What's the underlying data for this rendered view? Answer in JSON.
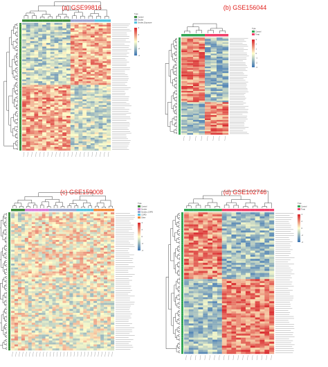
{
  "figure": {
    "background": "#ffffff",
    "title_color": "#e0201c"
  },
  "chart_data": [
    {
      "type": "heatmap",
      "title": "(a) GSE99816",
      "n_rows": 70,
      "n_cols": 22,
      "row_clusters": [
        34,
        36
      ],
      "column_groups": [
        12,
        6,
        4
      ],
      "group_colors": [
        "#3c8c3c",
        "#9aa6cf",
        "#57c3df"
      ],
      "colorbar_ticks": [
        "4",
        "2",
        "0",
        "-2",
        "-4"
      ],
      "legend_type_label": "Type",
      "legend_type_entries": [
        "Control",
        "Smoke",
        "Smoke_Exposure"
      ],
      "colorscale": [
        "#3a73b3",
        "#ffffcc",
        "#d8242a"
      ],
      "seed": 11
    },
    {
      "type": "heatmap",
      "title": "(b) GSE156044",
      "n_rows": 60,
      "n_cols": 8,
      "row_clusters": [
        40,
        20
      ],
      "column_groups": [
        4,
        4
      ],
      "group_colors": [
        "#33a653",
        "#f0406a"
      ],
      "colorbar_ticks": [
        "3",
        "2",
        "1",
        "0",
        "-1",
        "-2",
        "-3"
      ],
      "legend_type_label": "Type",
      "legend_type_entries": [
        "Control",
        "Treat"
      ],
      "colorscale": [
        "#3a73b3",
        "#ffffcc",
        "#d8242a"
      ],
      "seed": 23
    },
    {
      "type": "heatmap",
      "title": "(c) GSE159008",
      "n_rows": 70,
      "n_cols": 30,
      "row_clusters": [
        35,
        35
      ],
      "column_groups": [
        4,
        7,
        8,
        5,
        6
      ],
      "group_colors": [
        "#3c8c3c",
        "#d87fd8",
        "#9aa6cf",
        "#57c3df",
        "#f08a3c"
      ],
      "colorbar_ticks": [
        "4",
        "2",
        "0",
        "-2",
        "-4"
      ],
      "legend_type_label": "Type",
      "legend_type_entries": [
        "Control",
        "Smoke",
        "Smoke_COPD",
        "COPD",
        "Other"
      ],
      "colorscale": [
        "#3a73b3",
        "#ffffcc",
        "#d8242a"
      ],
      "seed": 37
    },
    {
      "type": "heatmap",
      "title": "(d) GSE102746",
      "n_rows": 70,
      "n_cols": 19,
      "row_clusters": [
        33,
        37
      ],
      "column_groups": [
        8,
        11
      ],
      "group_colors": [
        "#33a653",
        "#f0406a"
      ],
      "colorbar_ticks": [
        "4",
        "2",
        "0",
        "-2",
        "-4"
      ],
      "legend_type_label": "Type",
      "legend_type_entries": [
        "Control",
        "Treat"
      ],
      "colorscale": [
        "#3a73b3",
        "#ffffcc",
        "#d8242a"
      ],
      "seed": 53
    }
  ]
}
